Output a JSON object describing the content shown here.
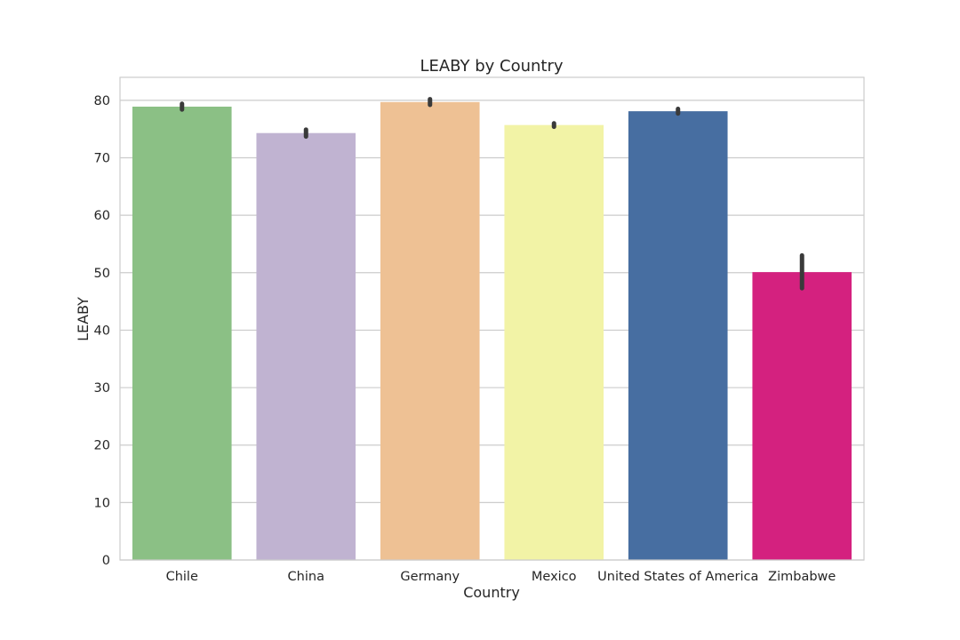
{
  "chart_data": {
    "type": "bar",
    "title": "LEABY by Country",
    "xlabel": "Country",
    "ylabel": "LEABY",
    "categories": [
      "Chile",
      "China",
      "Germany",
      "Mexico",
      "United States of America",
      "Zimbabwe"
    ],
    "values": [
      78.9,
      74.3,
      79.7,
      75.7,
      78.1,
      50.1
    ],
    "error_low": [
      78.4,
      73.7,
      79.2,
      75.4,
      77.7,
      47.3
    ],
    "error_high": [
      79.4,
      74.9,
      80.2,
      76.0,
      78.5,
      53.0
    ],
    "colors": [
      "#8bc085",
      "#c0b3d1",
      "#eec194",
      "#f2f3a6",
      "#476ea1",
      "#d4217f"
    ],
    "ylim": [
      0,
      84
    ],
    "yticks": [
      0,
      10,
      20,
      30,
      40,
      50,
      60,
      70,
      80
    ],
    "grid": true,
    "legend": "none"
  }
}
